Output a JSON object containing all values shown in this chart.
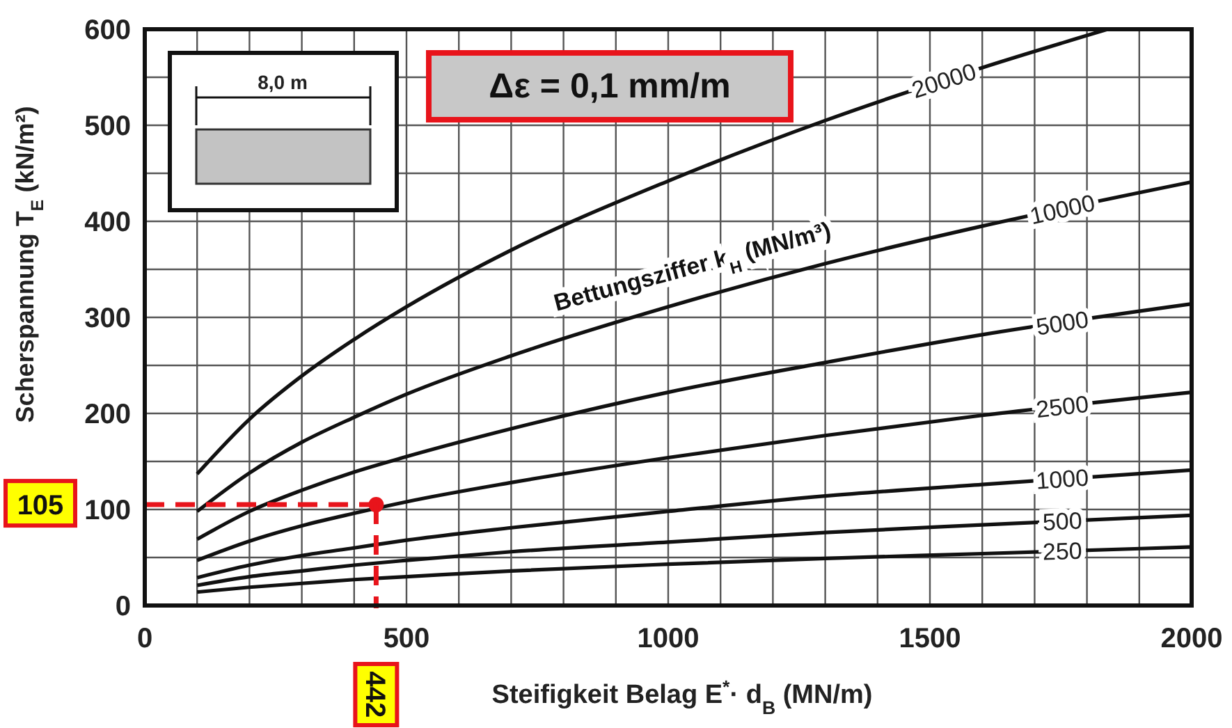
{
  "chart_data": {
    "type": "line",
    "xlabel": "Steifigkeit Belag E$^{*}$· d$_{B}$ (MN/m)",
    "ylabel": "Scherspannung T$_{E}$ (kN/m²)",
    "legend_title": "Bettungsziffer k$_{H}$ (MN/m³)",
    "x": [
      100,
      200,
      300,
      400,
      500,
      700,
      1000,
      1300,
      1600,
      2000
    ],
    "xlim": [
      0,
      2000
    ],
    "ylim": [
      0,
      600
    ],
    "xticks": [
      0,
      {
        "value": 100,
        "label": null
      },
      {
        "value": 200,
        "label": null
      },
      {
        "value": 300,
        "label": null
      },
      {
        "value": 400,
        "label": null
      },
      500,
      {
        "value": 600,
        "label": null
      },
      {
        "value": 700,
        "label": null
      },
      {
        "value": 800,
        "label": null
      },
      {
        "value": 900,
        "label": null
      },
      1000,
      {
        "value": 1100,
        "label": null
      },
      {
        "value": 1200,
        "label": null
      },
      {
        "value": 1300,
        "label": null
      },
      {
        "value": 1400,
        "label": null
      },
      1500,
      {
        "value": 1600,
        "label": null
      },
      {
        "value": 1700,
        "label": null
      },
      {
        "value": 1800,
        "label": null
      },
      {
        "value": 1900,
        "label": null
      },
      2000
    ],
    "yticks": [
      0,
      {
        "value": 50,
        "label": null
      },
      100,
      {
        "value": 150,
        "label": null
      },
      200,
      {
        "value": 250,
        "label": null
      },
      300,
      {
        "value": 350,
        "label": null
      },
      400,
      {
        "value": 450,
        "label": null
      },
      500,
      {
        "value": 550,
        "label": null
      },
      600
    ],
    "grid": true,
    "line_style": "solid",
    "series": [
      {
        "name": "20000",
        "color": "#111111",
        "x": [
          100,
          200,
          300,
          400,
          500,
          700,
          1000,
          1300,
          1600,
          1840
        ],
        "values": [
          137,
          194,
          239,
          277,
          311,
          370,
          442,
          505,
          560,
          600
        ]
      },
      {
        "name": "10000",
        "color": "#111111",
        "values": [
          98,
          138,
          170,
          196,
          220,
          260,
          311,
          356,
          395,
          441
        ]
      },
      {
        "name": "5000",
        "color": "#111111",
        "values": [
          69,
          98,
          120,
          139,
          155,
          184,
          222,
          253,
          282,
          314
        ]
      },
      {
        "name": "2500",
        "color": "#111111",
        "values": [
          47,
          67,
          83,
          96,
          108,
          128,
          154,
          177,
          198,
          222
        ]
      },
      {
        "name": "1000",
        "color": "#111111",
        "values": [
          29,
          42,
          52,
          60,
          68,
          81,
          98,
          114,
          126,
          141
        ]
      },
      {
        "name": "500",
        "color": "#111111",
        "values": [
          21,
          30,
          36,
          42,
          47,
          56,
          66,
          76,
          84,
          94
        ]
      },
      {
        "name": "250",
        "color": "#111111",
        "values": [
          14,
          19,
          23,
          27,
          30,
          36,
          43,
          49,
          54,
          61
        ]
      },
      {
        "type": "scatter",
        "color": "#e8141b",
        "marker": "circle",
        "x": [
          442
        ],
        "values": [
          105
        ]
      }
    ],
    "annotations": [
      "Δε = 0,1 mm/m",
      "8,0 m",
      "105",
      "442"
    ]
  }
}
